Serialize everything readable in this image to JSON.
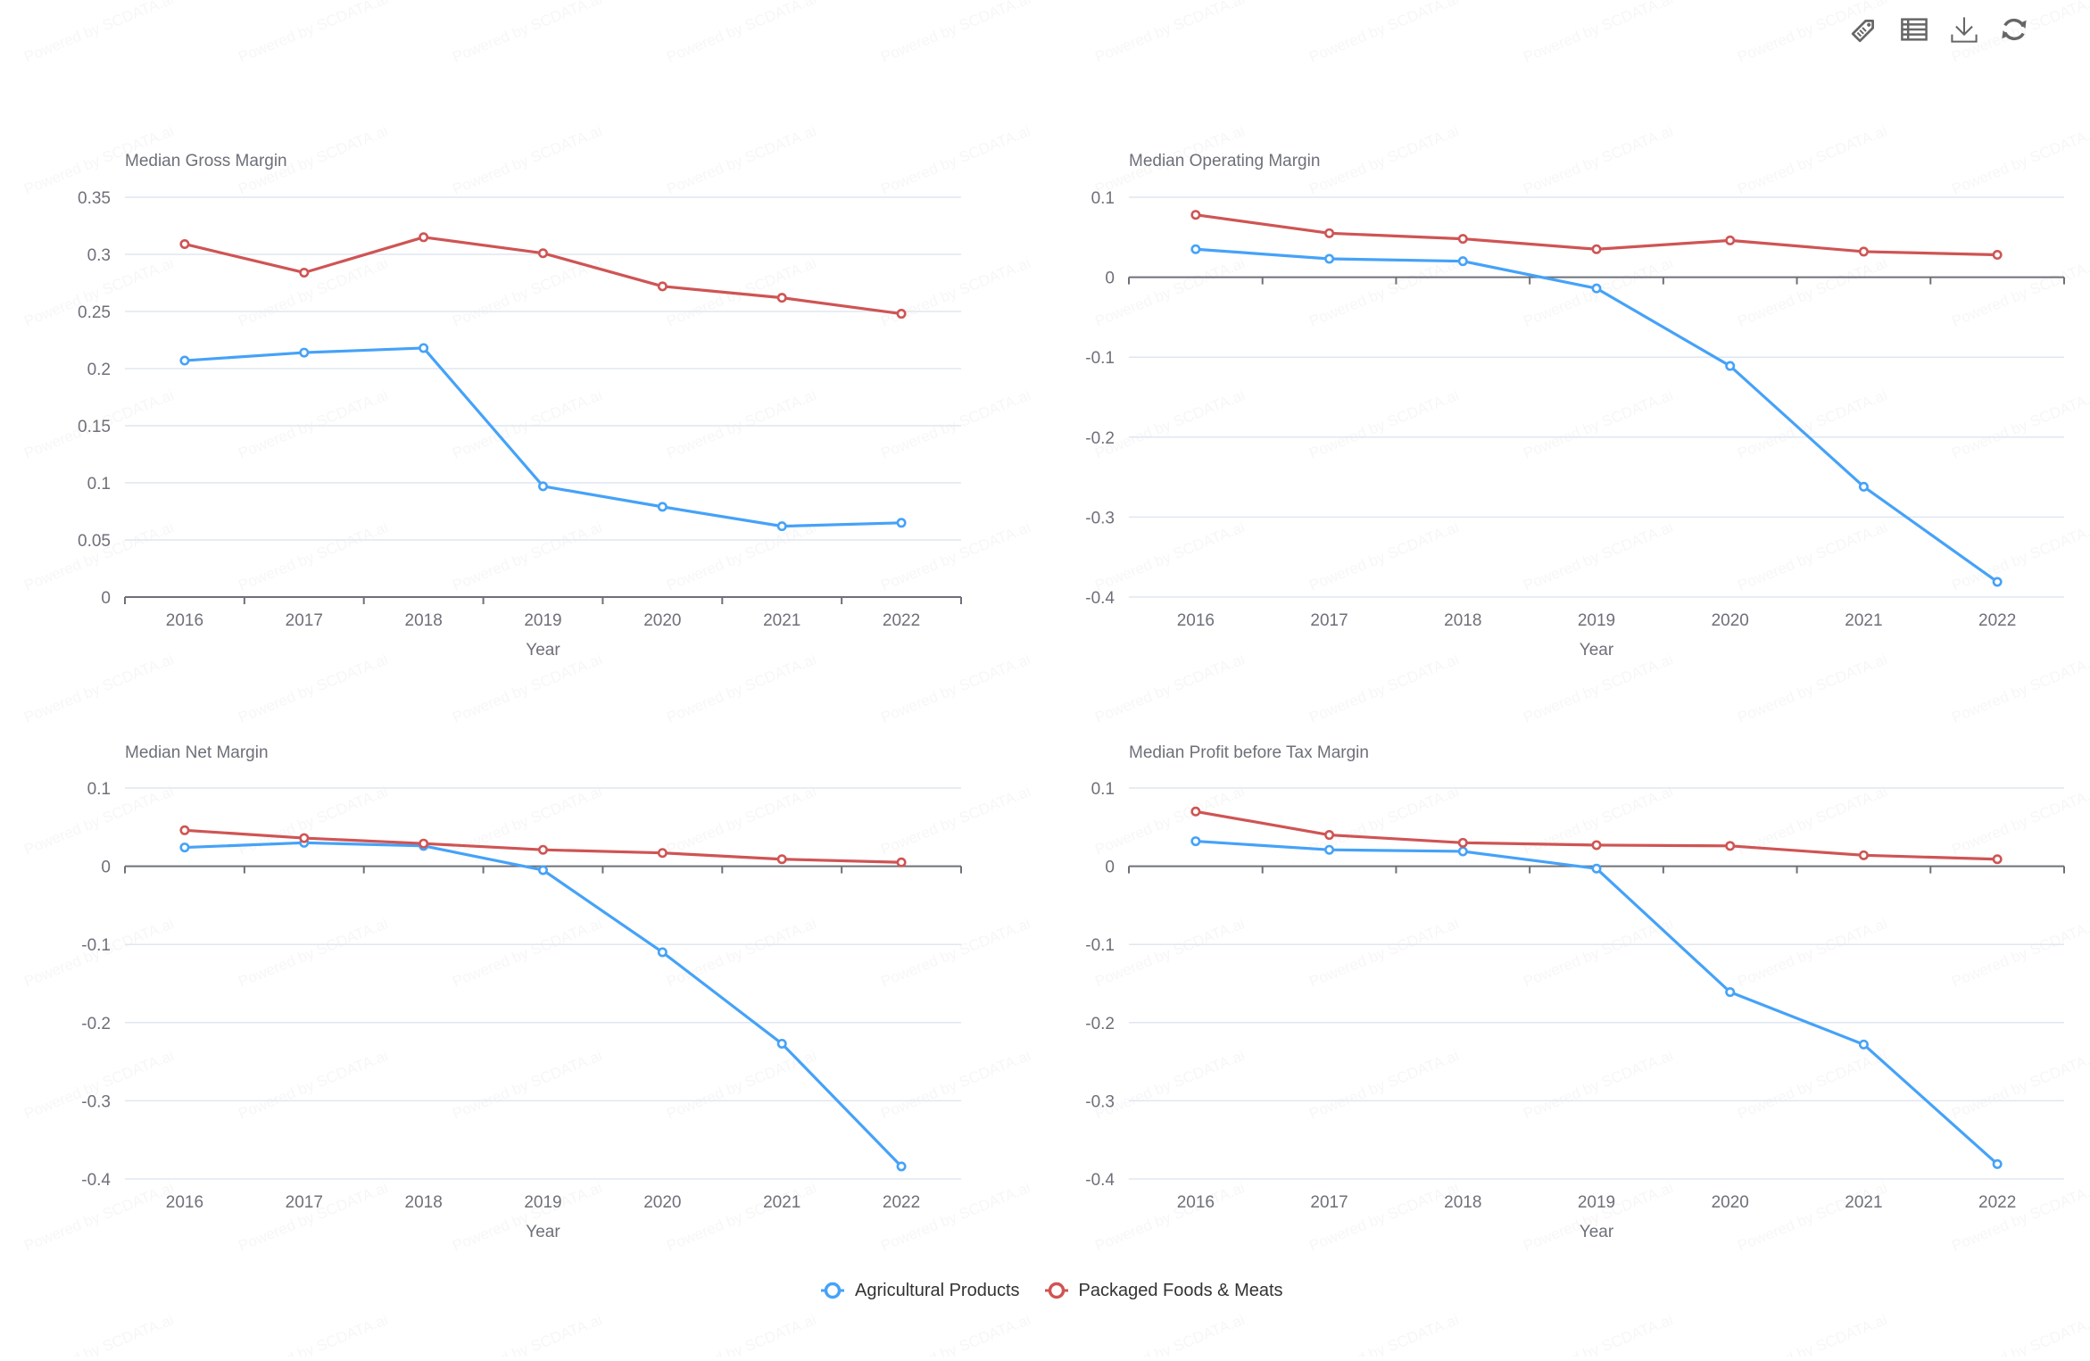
{
  "toolbox": {
    "items": [
      {
        "icon": "tag-icon",
        "label": "Mark"
      },
      {
        "icon": "table-icon",
        "label": "Data View"
      },
      {
        "icon": "download-icon",
        "label": "Save as Image"
      },
      {
        "icon": "refresh-icon",
        "label": "Restore"
      }
    ]
  },
  "watermark": "Powered by SCDATA.ai",
  "legend": [
    {
      "name": "Agricultural Products",
      "color": "#45a2f8"
    },
    {
      "name": "Packaged Foods & Meats",
      "color": "#cf5454"
    }
  ],
  "colors": {
    "grid": "#e0e6f1",
    "axis": "#6e7079",
    "text": "#6e7079"
  },
  "chart_data": [
    {
      "type": "line",
      "title": "Median Gross Margin",
      "xlabel": "Year",
      "ylabel": "",
      "categories": [
        "2016",
        "2017",
        "2018",
        "2019",
        "2020",
        "2021",
        "2022"
      ],
      "ylim": [
        0,
        0.35
      ],
      "yticks": [
        0,
        0.05,
        0.1,
        0.15,
        0.2,
        0.25,
        0.3,
        0.35
      ],
      "ytick_labels": [
        "0",
        "0.05",
        "0.1",
        "0.15",
        "0.2",
        "0.25",
        "0.3",
        "0.35"
      ],
      "grid": true,
      "series": [
        {
          "name": "Agricultural Products",
          "values": [
            0.207,
            0.214,
            0.218,
            0.097,
            0.079,
            0.062,
            0.065
          ]
        },
        {
          "name": "Packaged Foods & Meats",
          "values": [
            0.309,
            0.284,
            0.315,
            0.301,
            0.272,
            0.262,
            0.248
          ]
        }
      ]
    },
    {
      "type": "line",
      "title": "Median Operating Margin",
      "xlabel": "Year",
      "ylabel": "",
      "categories": [
        "2016",
        "2017",
        "2018",
        "2019",
        "2020",
        "2021",
        "2022"
      ],
      "ylim": [
        -0.4,
        0.1
      ],
      "yticks": [
        -0.4,
        -0.3,
        -0.2,
        -0.1,
        0,
        0.1
      ],
      "ytick_labels": [
        "-0.4",
        "-0.3",
        "-0.2",
        "-0.1",
        "0",
        "0.1"
      ],
      "grid": true,
      "series": [
        {
          "name": "Agricultural Products",
          "values": [
            0.035,
            0.023,
            0.02,
            -0.014,
            -0.111,
            -0.262,
            -0.381
          ]
        },
        {
          "name": "Packaged Foods & Meats",
          "values": [
            0.078,
            0.055,
            0.048,
            0.035,
            0.046,
            0.032,
            0.028
          ]
        }
      ]
    },
    {
      "type": "line",
      "title": "Median Net Margin",
      "xlabel": "Year",
      "ylabel": "",
      "categories": [
        "2016",
        "2017",
        "2018",
        "2019",
        "2020",
        "2021",
        "2022"
      ],
      "ylim": [
        -0.4,
        0.1
      ],
      "yticks": [
        -0.4,
        -0.3,
        -0.2,
        -0.1,
        0,
        0.1
      ],
      "ytick_labels": [
        "-0.4",
        "-0.3",
        "-0.2",
        "-0.1",
        "0",
        "0.1"
      ],
      "grid": true,
      "series": [
        {
          "name": "Agricultural Products",
          "values": [
            0.024,
            0.03,
            0.026,
            -0.005,
            -0.11,
            -0.227,
            -0.384
          ]
        },
        {
          "name": "Packaged Foods & Meats",
          "values": [
            0.046,
            0.036,
            0.029,
            0.021,
            0.017,
            0.009,
            0.005
          ]
        }
      ]
    },
    {
      "type": "line",
      "title": "Median Profit before Tax Margin",
      "xlabel": "Year",
      "ylabel": "",
      "categories": [
        "2016",
        "2017",
        "2018",
        "2019",
        "2020",
        "2021",
        "2022"
      ],
      "ylim": [
        -0.4,
        0.1
      ],
      "yticks": [
        -0.4,
        -0.3,
        -0.2,
        -0.1,
        0,
        0.1
      ],
      "ytick_labels": [
        "-0.4",
        "-0.3",
        "-0.2",
        "-0.1",
        "0",
        "0.1"
      ],
      "grid": true,
      "series": [
        {
          "name": "Agricultural Products",
          "values": [
            0.032,
            0.021,
            0.019,
            -0.003,
            -0.161,
            -0.228,
            -0.381
          ]
        },
        {
          "name": "Packaged Foods & Meats",
          "values": [
            0.07,
            0.04,
            0.03,
            0.027,
            0.026,
            0.014,
            0.009
          ]
        }
      ]
    }
  ]
}
